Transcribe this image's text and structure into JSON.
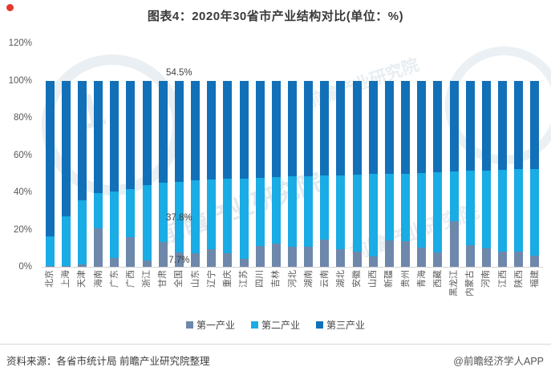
{
  "header": {
    "title": "图表4：2020年30省市产业结构对比(单位：%)"
  },
  "chart_data": {
    "type": "bar",
    "stacked": true,
    "unit": "%",
    "title": "图表4：2020年30省市产业结构对比(单位：%)",
    "categories": [
      "北京",
      "上海",
      "天津",
      "海南",
      "广东",
      "广西",
      "浙江",
      "甘肃",
      "全国",
      "山东",
      "辽宁",
      "重庆",
      "江苏",
      "四川",
      "吉林",
      "河北",
      "湖南",
      "云南",
      "湖北",
      "安徽",
      "山西",
      "新疆",
      "贵州",
      "青海",
      "西藏",
      "黑龙江",
      "内蒙古",
      "河南",
      "江西",
      "陕西",
      "福建"
    ],
    "series": [
      {
        "name": "第一产业",
        "color": "#6e88ab",
        "values": [
          0.4,
          0.3,
          1.5,
          20.5,
          4.6,
          16.0,
          3.3,
          13.3,
          7.7,
          7.3,
          9.3,
          7.2,
          4.5,
          11.4,
          12.5,
          10.8,
          10.7,
          14.8,
          9.4,
          8.0,
          5.4,
          14.1,
          13.6,
          10.3,
          7.9,
          24.4,
          11.5,
          10.0,
          8.2,
          8.2,
          6.2
        ]
      },
      {
        "name": "第二产业",
        "color": "#19ace5",
        "values": [
          15.8,
          26.6,
          34.1,
          19.1,
          35.8,
          25.7,
          40.4,
          31.8,
          37.8,
          39.1,
          37.6,
          40.0,
          43.0,
          36.2,
          35.5,
          37.7,
          37.9,
          34.2,
          39.7,
          41.3,
          44.4,
          35.8,
          36.4,
          40.0,
          42.7,
          27.0,
          40.0,
          41.8,
          43.9,
          44.3,
          46.4
        ]
      },
      {
        "name": "第三产业",
        "color": "#1270b8",
        "values": [
          83.8,
          73.1,
          64.4,
          60.4,
          59.6,
          58.3,
          56.3,
          54.9,
          54.5,
          53.6,
          53.1,
          52.8,
          52.5,
          52.4,
          52.0,
          51.5,
          51.4,
          51.0,
          50.9,
          50.7,
          50.2,
          50.1,
          50.0,
          49.7,
          49.4,
          48.6,
          48.5,
          48.2,
          47.9,
          47.5,
          47.4
        ]
      }
    ],
    "annotations": [
      {
        "category": "全国",
        "series": "第三产业",
        "text": "54.5%"
      },
      {
        "category": "全国",
        "series": "第二产业",
        "text": "37.8%"
      },
      {
        "category": "全国",
        "series": "第一产业",
        "text": "7.7%"
      }
    ],
    "y_ticks": [
      "0%",
      "20%",
      "40%",
      "60%",
      "80%",
      "100%",
      "120%"
    ],
    "y_tick_values": [
      0,
      20,
      40,
      60,
      80,
      100,
      120
    ],
    "ylim": [
      0,
      120
    ],
    "grid": false,
    "legend_position": "bottom"
  },
  "legend": {
    "items": [
      {
        "label": "第一产业",
        "color": "#6e88ab"
      },
      {
        "label": "第二产业",
        "color": "#19ace5"
      },
      {
        "label": "第三产业",
        "color": "#1270b8"
      }
    ]
  },
  "footer": {
    "source": "资料来源：各省市统计局 前瞻产业研究院整理",
    "credit": "@前瞻经济学人APP"
  },
  "watermark": {
    "text": "前瞻产业研究院",
    "logo_glyph": "1"
  }
}
